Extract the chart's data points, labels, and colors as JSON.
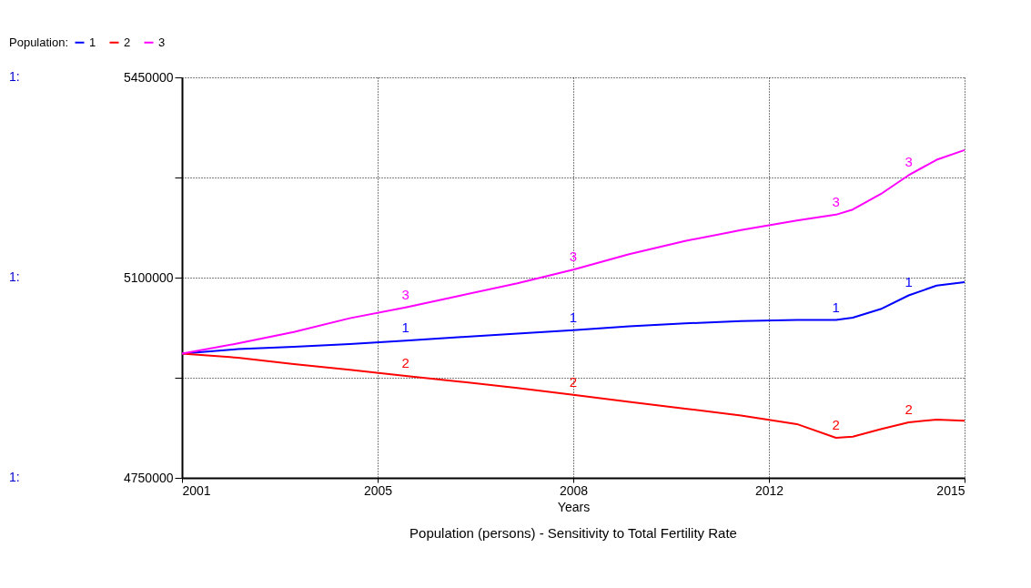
{
  "chart_data": {
    "type": "line",
    "title": "Population (persons) - Sensitivity to Total Fertility Rate",
    "xlabel": "Years",
    "legend_title": "Population:",
    "legend": "top left",
    "grid": true,
    "line_style": "solid",
    "marker": "none",
    "x": [
      2001,
      2002,
      2003,
      2004,
      2005,
      2006,
      2007,
      2008,
      2009,
      2010,
      2011,
      2012,
      2012.7,
      2013,
      2013.5,
      2014,
      2014.5,
      2015
    ],
    "xlim": [
      2001,
      2015
    ],
    "xticks": [
      2001,
      {
        "value": 2004.5,
        "label": "2005"
      },
      2008,
      {
        "value": 2011.5,
        "label": "2012"
      },
      2015
    ],
    "ylim": [
      4750000,
      5450000
    ],
    "yticks": [
      4750000,
      {
        "value": 4925000,
        "label": null
      },
      5100000,
      {
        "value": 5275000,
        "label": null
      },
      5450000
    ],
    "annotations": [
      "1:",
      "1:",
      "1:"
    ],
    "series": [
      {
        "name": "1",
        "color": "#0000ff",
        "values": [
          4967000,
          4975000,
          4979000,
          4984000,
          4990000,
          4996000,
          5002000,
          5008000,
          5015000,
          5020000,
          5024000,
          5026000,
          5026000,
          5030000,
          5045000,
          5069000,
          5086000,
          5092000
        ]
      },
      {
        "name": "2",
        "color": "#ff0000",
        "values": [
          4967000,
          4960000,
          4949000,
          4939000,
          4928000,
          4918000,
          4907000,
          4895000,
          4883000,
          4871000,
          4859000,
          4844000,
          4820000,
          4822000,
          4835000,
          4847000,
          4852000,
          4850000
        ]
      },
      {
        "name": "3",
        "color": "#ff00ff",
        "values": [
          4967000,
          4985000,
          5005000,
          5029000,
          5048000,
          5069000,
          5090000,
          5114000,
          5141000,
          5164000,
          5183000,
          5200000,
          5210000,
          5219000,
          5246000,
          5279000,
          5306000,
          5323000
        ]
      }
    ]
  }
}
